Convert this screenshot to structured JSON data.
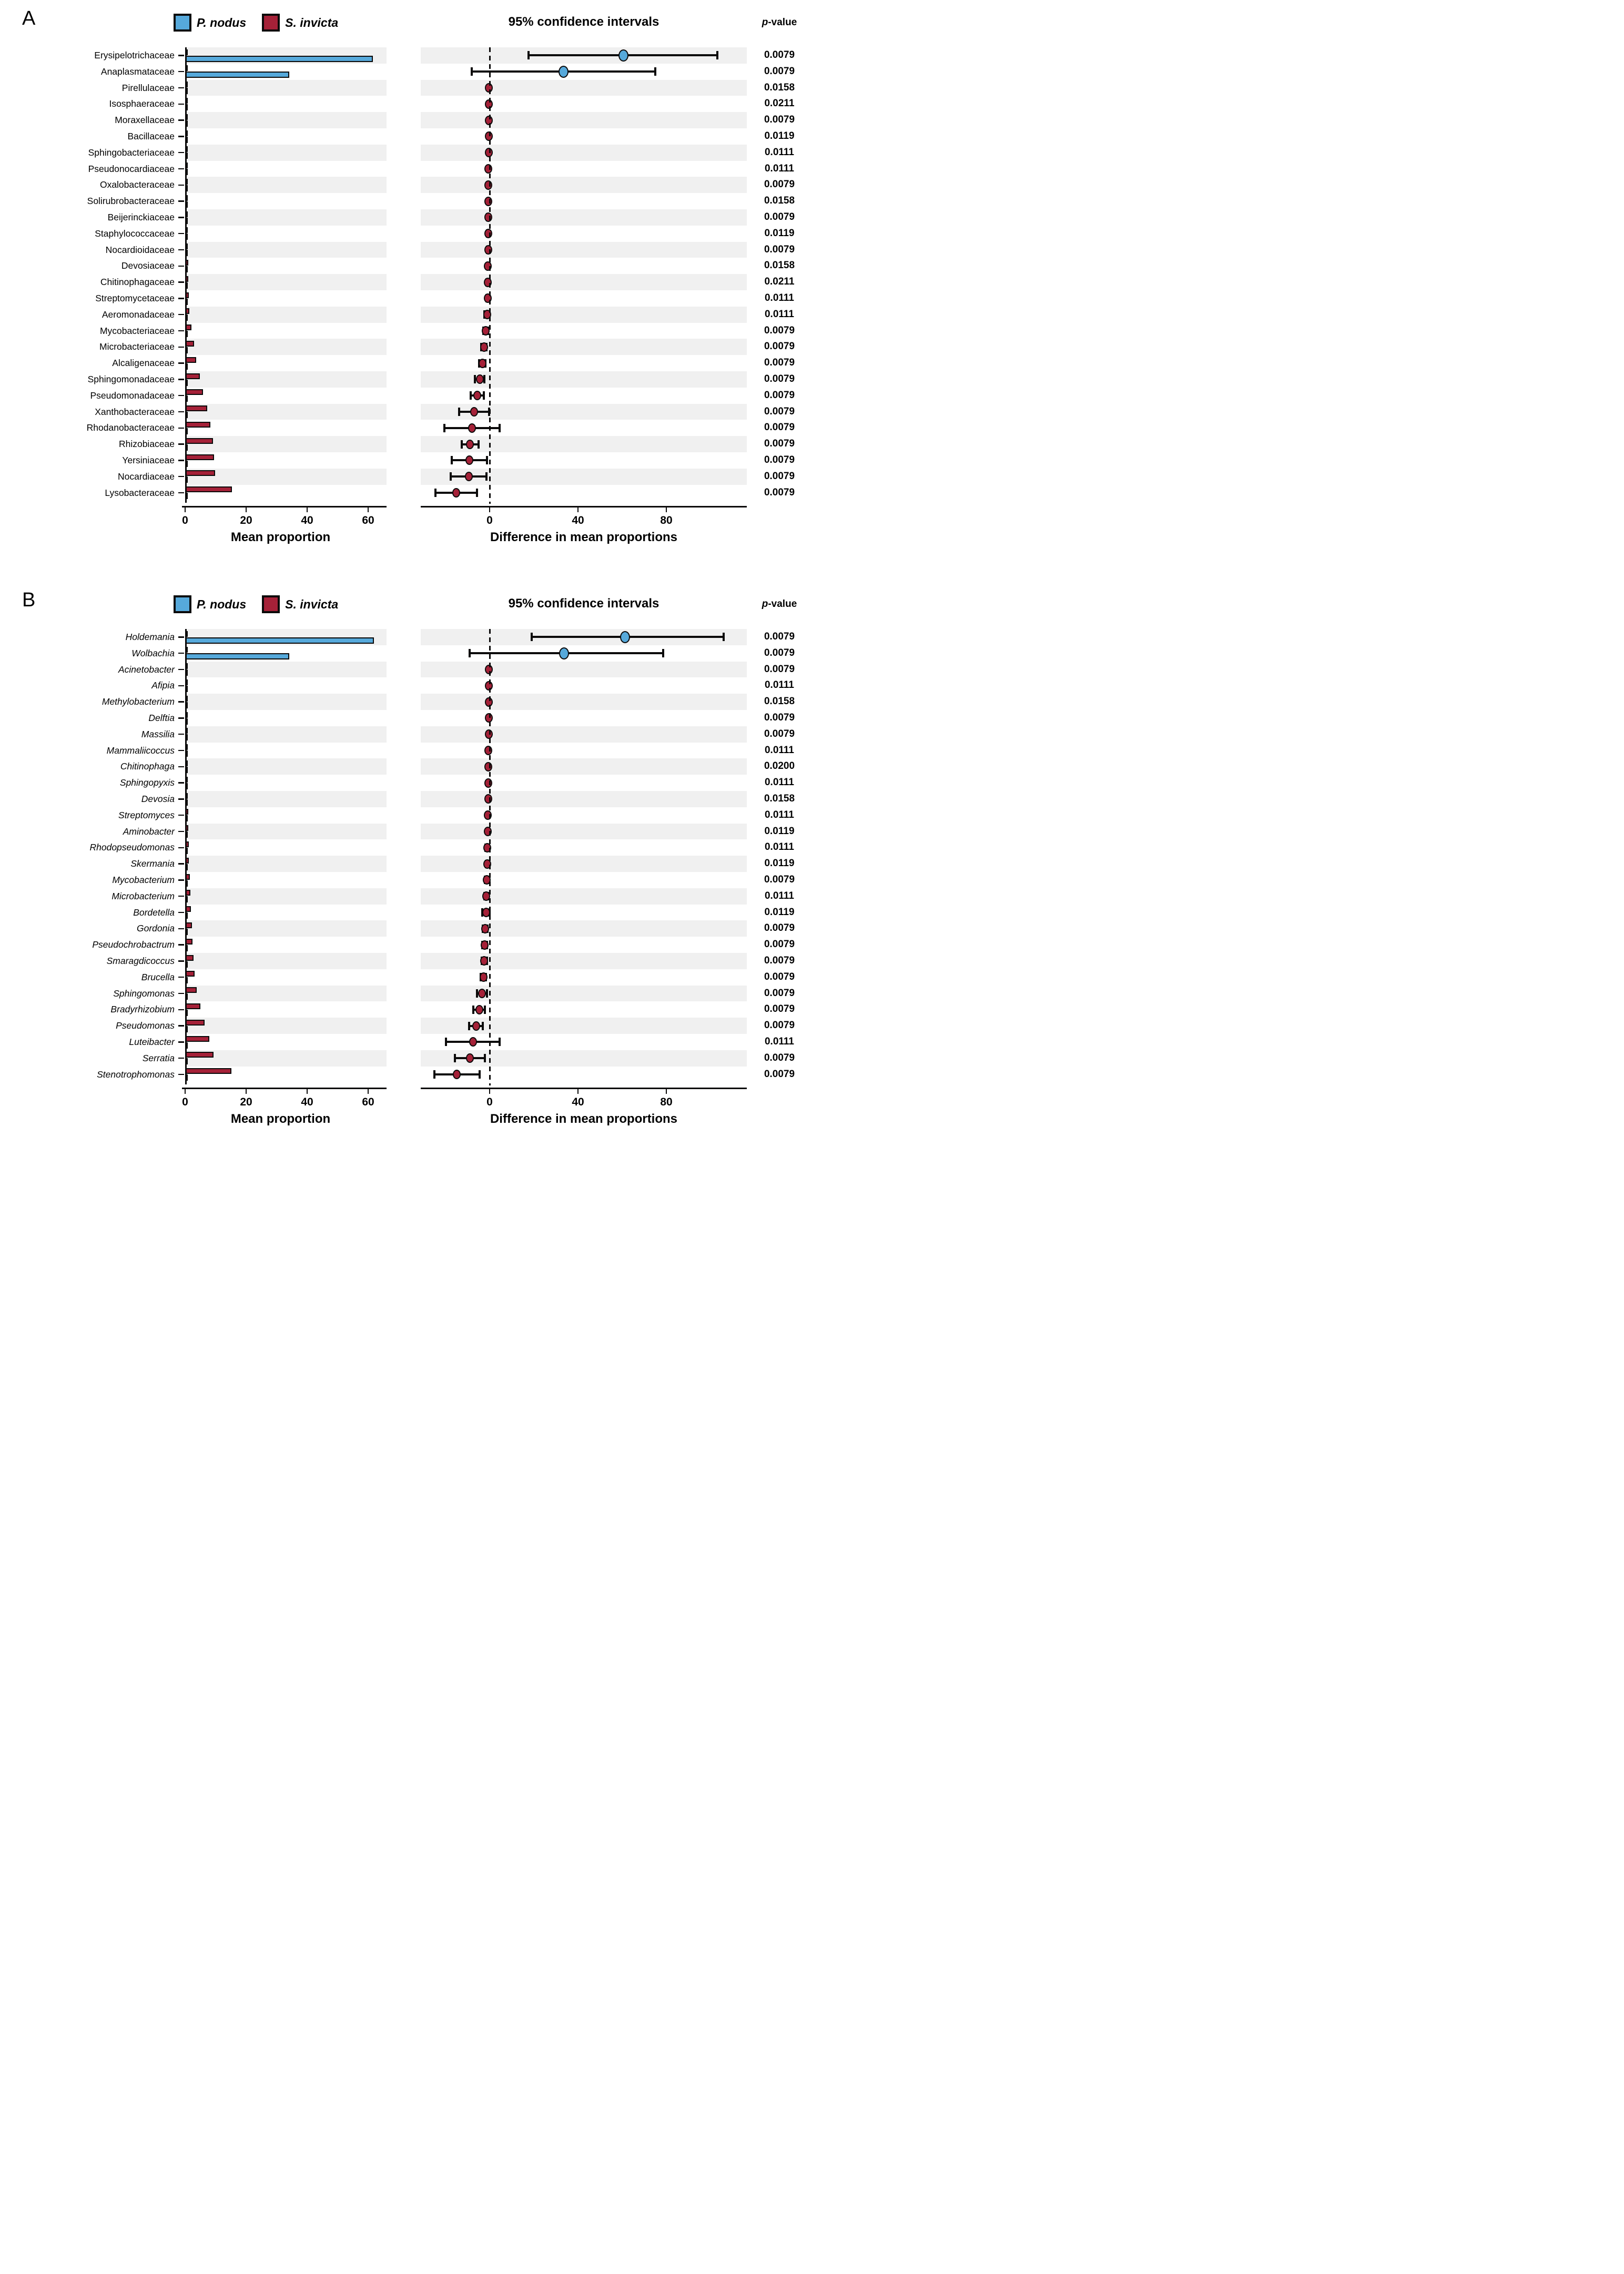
{
  "figure": {
    "colors": {
      "pnodus_blue": "#56a9db",
      "sinvicta_red": "#a52138",
      "stripe_gray": "#f0f0f0",
      "outline_black": "#0b0a0a"
    },
    "p_header": {
      "italic": "p",
      "rest": "-value"
    }
  },
  "chart_data": [
    {
      "panel_letter": "A",
      "type": "bar",
      "italic_category_labels": false,
      "legend_position": "top",
      "grid": false,
      "ci_title": "95% confidence intervals",
      "bar_axis": {
        "label": "Mean proportion",
        "ticks": [
          0,
          20,
          40,
          60
        ],
        "xlim": [
          0,
          65
        ]
      },
      "diff_axis": {
        "label": "Difference in mean proportions",
        "ticks": [
          0,
          40,
          80
        ],
        "xlim": [
          -31,
          116
        ]
      },
      "categories": [
        "Erysipelotrichaceae",
        "Anaplasmataceae",
        "Pirellulaceae",
        "Isosphaeraceae",
        "Moraxellaceae",
        "Bacillaceae",
        "Sphingobacteriaceae",
        "Pseudonocardiaceae",
        "Oxalobacteraceae",
        "Solirubrobacteraceae",
        "Beijerinckiaceae",
        "Staphylococcaceae",
        "Nocardioidaceae",
        "Devosiaceae",
        "Chitinophagaceae",
        "Streptomycetaceae",
        "Aeromonadaceae",
        "Mycobacteriaceae",
        "Microbacteriaceae",
        "Alcaligenaceae",
        "Sphingomonadaceae",
        "Pseudomonadaceae",
        "Xanthobacteraceae",
        "Rhodanobacteraceae",
        "Rhizobiaceae",
        "Yersiniaceae",
        "Nocardiaceae",
        "Lysobacteraceae"
      ],
      "series": [
        {
          "name": "P. nodus",
          "color": "#56a9db",
          "values": [
            61.3,
            34.0,
            0.1,
            0.1,
            0.1,
            0.1,
            0.1,
            0.1,
            0.1,
            0.1,
            0.1,
            0.1,
            0.1,
            0.1,
            0.1,
            0.1,
            0.1,
            0.15,
            0.15,
            0.15,
            0.15,
            0.15,
            0.15,
            0.15,
            0.15,
            0.15,
            0.15,
            0.2
          ]
        },
        {
          "name": "S. invicta",
          "color": "#a52138",
          "values": [
            0.6,
            0.4,
            0.35,
            0.35,
            0.4,
            0.45,
            0.5,
            0.55,
            0.6,
            0.65,
            0.7,
            0.7,
            0.75,
            0.8,
            0.85,
            0.95,
            1.2,
            1.9,
            2.7,
            3.4,
            4.6,
            5.7,
            7.1,
            8.1,
            9.0,
            9.3,
            9.6,
            15.2
          ]
        }
      ],
      "difference": {
        "values": [
          60.5,
          33.5,
          -0.3,
          -0.3,
          -0.35,
          -0.4,
          -0.45,
          -0.5,
          -0.55,
          -0.6,
          -0.65,
          -0.65,
          -0.7,
          -0.75,
          -0.8,
          -0.9,
          -1.1,
          -1.8,
          -2.6,
          -3.3,
          -4.5,
          -5.6,
          -7.0,
          -8.0,
          -8.9,
          -9.2,
          -9.5,
          -15.1
        ],
        "ci_low": [
          17.5,
          -8.0,
          -0.55,
          -0.6,
          -0.6,
          -0.7,
          -0.75,
          -0.85,
          -1.0,
          -1.0,
          -1.1,
          -1.1,
          -1.2,
          -1.25,
          -1.35,
          -1.45,
          -2.4,
          -2.8,
          -3.7,
          -4.8,
          -6.6,
          -8.6,
          -13.8,
          -20.5,
          -12.7,
          -17.2,
          -17.7,
          -24.6
        ],
        "ci_high": [
          103.0,
          75.0,
          -0.1,
          -0.1,
          -0.15,
          -0.15,
          -0.2,
          -0.2,
          -0.2,
          -0.25,
          -0.25,
          -0.3,
          -0.3,
          -0.3,
          -0.35,
          -0.4,
          -0.3,
          -0.8,
          -1.5,
          -1.8,
          -2.4,
          -2.6,
          -0.3,
          4.5,
          -5.1,
          -1.2,
          -1.4,
          -5.6
        ]
      },
      "p_values": [
        "0.0079",
        "0.0079",
        "0.0158",
        "0.0211",
        "0.0079",
        "0.0119",
        "0.0111",
        "0.0111",
        "0.0079",
        "0.0158",
        "0.0079",
        "0.0119",
        "0.0079",
        "0.0158",
        "0.0211",
        "0.0111",
        "0.0111",
        "0.0079",
        "0.0079",
        "0.0079",
        "0.0079",
        "0.0079",
        "0.0079",
        "0.0079",
        "0.0079",
        "0.0079",
        "0.0079",
        "0.0079"
      ]
    },
    {
      "panel_letter": "B",
      "type": "bar",
      "italic_category_labels": true,
      "legend_position": "top",
      "grid": false,
      "ci_title": "95% confidence intervals",
      "bar_axis": {
        "label": "Mean proportion",
        "ticks": [
          0,
          20,
          40,
          60
        ],
        "xlim": [
          0,
          65
        ]
      },
      "diff_axis": {
        "label": "Difference in mean proportions",
        "ticks": [
          0,
          40,
          80
        ],
        "xlim": [
          -31,
          116
        ]
      },
      "categories": [
        "Holdemania",
        "Wolbachia",
        "Acinetobacter",
        "Afipia",
        "Methylobacterium",
        "Delftia",
        "Massilia",
        "Mammaliicoccus",
        "Chitinophaga",
        "Sphingopyxis",
        "Devosia",
        "Streptomyces",
        "Aminobacter",
        "Rhodopseudomonas",
        "Skermania",
        "Mycobacterium",
        "Microbacterium",
        "Bordetella",
        "Gordonia",
        "Pseudochrobactrum",
        "Smaragdicoccus",
        "Brucella",
        "Sphingomonas",
        "Bradyrhizobium",
        "Pseudomonas",
        "Luteibacter",
        "Serratia",
        "Stenotrophomonas"
      ],
      "series": [
        {
          "name": "P. nodus",
          "color": "#56a9db",
          "values": [
            61.7,
            33.9,
            0.1,
            0.1,
            0.1,
            0.1,
            0.1,
            0.1,
            0.1,
            0.1,
            0.1,
            0.1,
            0.1,
            0.1,
            0.1,
            0.1,
            0.1,
            0.15,
            0.15,
            0.15,
            0.15,
            0.15,
            0.15,
            0.15,
            0.15,
            0.15,
            0.15,
            0.2
          ]
        },
        {
          "name": "S. invicta",
          "color": "#a52138",
          "values": [
            0.5,
            0.3,
            0.35,
            0.4,
            0.4,
            0.45,
            0.5,
            0.5,
            0.55,
            0.6,
            0.65,
            0.8,
            0.85,
            1.05,
            1.05,
            1.45,
            1.55,
            1.7,
            2.1,
            2.3,
            2.5,
            2.9,
            3.6,
            4.8,
            6.2,
            7.8,
            9.2,
            15.0
          ]
        }
      ],
      "difference": {
        "values": [
          61.3,
          33.6,
          -0.3,
          -0.35,
          -0.37,
          -0.4,
          -0.45,
          -0.48,
          -0.5,
          -0.55,
          -0.6,
          -0.75,
          -0.8,
          -1.0,
          -1.0,
          -1.35,
          -1.45,
          -1.6,
          -2.0,
          -2.2,
          -2.4,
          -2.8,
          -3.5,
          -4.7,
          -6.1,
          -7.6,
          -9.0,
          -14.8
        ],
        "ci_low": [
          19.0,
          -9.0,
          -0.55,
          -0.6,
          -0.65,
          -0.68,
          -0.75,
          -0.8,
          -0.9,
          -0.95,
          -1.0,
          -1.2,
          -1.3,
          -1.9,
          -1.65,
          -2.2,
          -2.5,
          -3.3,
          -3.1,
          -3.3,
          -3.6,
          -4.0,
          -5.8,
          -7.3,
          -9.2,
          -19.8,
          -15.8,
          -25.0
        ],
        "ci_high": [
          106.0,
          78.5,
          -0.1,
          -0.12,
          -0.12,
          -0.15,
          -0.18,
          -0.18,
          -0.2,
          -0.22,
          -0.25,
          -0.3,
          -0.32,
          -0.25,
          -0.4,
          -0.55,
          -0.5,
          0.1,
          -1.0,
          -1.1,
          -1.3,
          -1.6,
          -1.2,
          -2.1,
          -3.0,
          4.6,
          -2.2,
          -4.6
        ]
      },
      "p_values": [
        "0.0079",
        "0.0079",
        "0.0079",
        "0.0111",
        "0.0158",
        "0.0079",
        "0.0079",
        "0.0111",
        "0.0200",
        "0.0111",
        "0.0158",
        "0.0111",
        "0.0119",
        "0.0111",
        "0.0119",
        "0.0079",
        "0.0111",
        "0.0119",
        "0.0079",
        "0.0079",
        "0.0079",
        "0.0079",
        "0.0079",
        "0.0079",
        "0.0079",
        "0.0111",
        "0.0079",
        "0.0079"
      ]
    }
  ]
}
